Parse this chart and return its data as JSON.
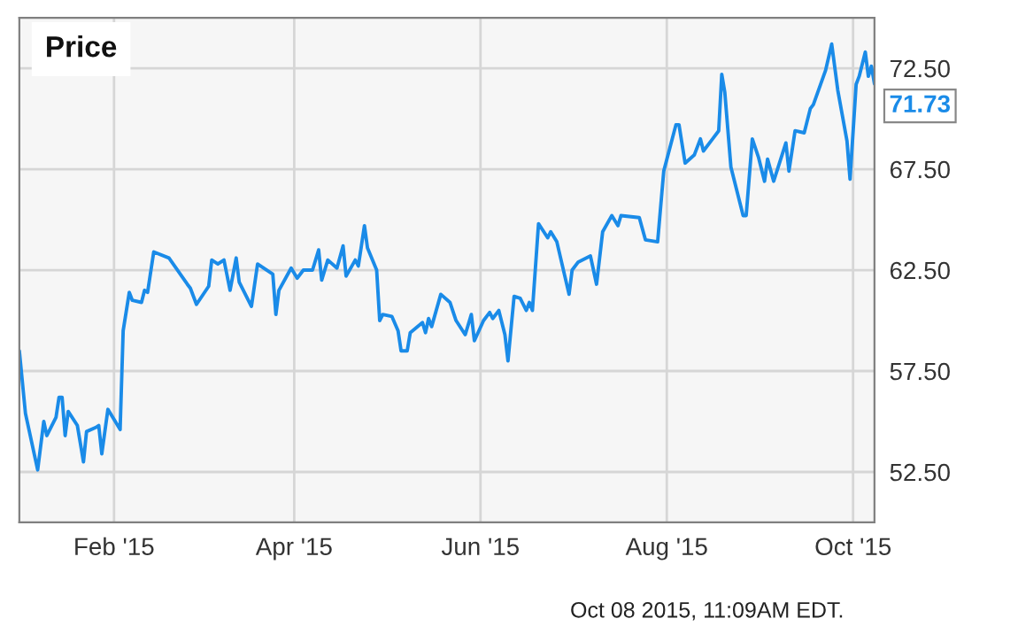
{
  "chart_data": {
    "type": "line",
    "title": "Price",
    "x": [
      "2015-01-01",
      "2015-01-03",
      "2015-01-07",
      "2015-01-09",
      "2015-01-10",
      "2015-01-13",
      "2015-01-14",
      "2015-01-15",
      "2015-01-16",
      "2015-01-17",
      "2015-01-20",
      "2015-01-22",
      "2015-01-23",
      "2015-01-26",
      "2015-01-27",
      "2015-01-28",
      "2015-01-30",
      "2015-02-03",
      "2015-02-04",
      "2015-02-06",
      "2015-02-07",
      "2015-02-10",
      "2015-02-11",
      "2015-02-12",
      "2015-02-14",
      "2015-02-19",
      "2015-02-25",
      "2015-02-26",
      "2015-02-28",
      "2015-03-04",
      "2015-03-05",
      "2015-03-07",
      "2015-03-09",
      "2015-03-11",
      "2015-03-13",
      "2015-03-14",
      "2015-03-18",
      "2015-03-20",
      "2015-03-25",
      "2015-03-26",
      "2015-03-27",
      "2015-03-31",
      "2015-04-02",
      "2015-04-04",
      "2015-04-07",
      "2015-04-09",
      "2015-04-10",
      "2015-04-12",
      "2015-04-15",
      "2015-04-17",
      "2015-04-18",
      "2015-04-21",
      "2015-04-22",
      "2015-04-24",
      "2015-04-25",
      "2015-04-28",
      "2015-04-29",
      "2015-04-30",
      "2015-05-03",
      "2015-05-05",
      "2015-05-06",
      "2015-05-08",
      "2015-05-09",
      "2015-05-13",
      "2015-05-14",
      "2015-05-15",
      "2015-05-16",
      "2015-05-19",
      "2015-05-22",
      "2015-05-24",
      "2015-05-27",
      "2015-05-29",
      "2015-05-30",
      "2015-06-02",
      "2015-06-04",
      "2015-06-05",
      "2015-06-07",
      "2015-06-09",
      "2015-06-10",
      "2015-06-12",
      "2015-06-14",
      "2015-06-16",
      "2015-06-17",
      "2015-06-18",
      "2015-06-20",
      "2015-06-23",
      "2015-06-24",
      "2015-06-26",
      "2015-06-30",
      "2015-07-01",
      "2015-07-03",
      "2015-07-07",
      "2015-07-09",
      "2015-07-11",
      "2015-07-14",
      "2015-07-16",
      "2015-07-17",
      "2015-07-23",
      "2015-07-25",
      "2015-07-29",
      "2015-07-31",
      "2015-08-04",
      "2015-08-05",
      "2015-08-07",
      "2015-08-10",
      "2015-08-12",
      "2015-08-13",
      "2015-08-16",
      "2015-08-18",
      "2015-08-19",
      "2015-08-20",
      "2015-08-22",
      "2015-08-26",
      "2015-08-27",
      "2015-08-29",
      "2015-08-31",
      "2015-09-02",
      "2015-09-03",
      "2015-09-05",
      "2015-09-09",
      "2015-09-10",
      "2015-09-12",
      "2015-09-15",
      "2015-09-17",
      "2015-09-18",
      "2015-09-22",
      "2015-09-24",
      "2015-09-26",
      "2015-09-29",
      "2015-09-30",
      "2015-10-02",
      "2015-10-03",
      "2015-10-05",
      "2015-10-06",
      "2015-10-07",
      "2015-10-08"
    ],
    "series": [
      {
        "color": "#1a8be8",
        "values": [
          58.5,
          55.4,
          52.6,
          55.0,
          54.3,
          55.2,
          56.2,
          56.2,
          54.3,
          55.5,
          54.8,
          53.0,
          54.5,
          54.7,
          54.8,
          53.4,
          55.6,
          54.6,
          59.5,
          61.4,
          61.0,
          60.9,
          61.5,
          61.4,
          63.4,
          63.1,
          61.8,
          61.6,
          60.8,
          61.7,
          63.0,
          62.8,
          63.0,
          61.5,
          63.1,
          61.9,
          60.7,
          62.8,
          62.3,
          60.3,
          61.5,
          62.6,
          62.1,
          62.5,
          62.5,
          63.5,
          62.0,
          63.0,
          62.6,
          63.7,
          62.2,
          63.0,
          62.7,
          64.7,
          63.6,
          62.5,
          60.0,
          60.3,
          60.2,
          59.5,
          58.5,
          58.5,
          59.4,
          59.9,
          59.4,
          60.1,
          59.7,
          61.3,
          60.9,
          60.0,
          59.3,
          60.3,
          59.0,
          60.0,
          60.4,
          60.1,
          60.5,
          59.3,
          58.0,
          61.2,
          61.1,
          60.5,
          60.9,
          60.5,
          64.8,
          64.1,
          64.4,
          63.9,
          61.3,
          62.5,
          62.9,
          63.2,
          61.8,
          64.4,
          65.2,
          64.7,
          65.2,
          65.1,
          64.0,
          63.9,
          67.4,
          69.7,
          69.7,
          67.8,
          68.2,
          69.0,
          68.4,
          69.0,
          69.4,
          72.2,
          71.3,
          67.6,
          65.2,
          65.2,
          69.0,
          68.1,
          66.9,
          68.0,
          66.9,
          68.8,
          67.4,
          69.4,
          69.3,
          70.5,
          70.7,
          72.4,
          73.7,
          71.4,
          68.9,
          67.0,
          71.7,
          72.1,
          73.3,
          72.1,
          72.6,
          71.73
        ]
      }
    ],
    "xlim": [
      "2015-01-01",
      "2015-10-08"
    ],
    "xticks": [
      {
        "value": "2015-02-01",
        "label": "Feb '15"
      },
      {
        "value": "2015-04-01",
        "label": "Apr '15"
      },
      {
        "value": "2015-06-01",
        "label": "Jun '15"
      },
      {
        "value": "2015-08-01",
        "label": "Aug '15"
      },
      {
        "value": "2015-10-01",
        "label": "Oct '15"
      }
    ],
    "ylim": [
      50,
      75
    ],
    "yticks": [
      {
        "value": 52.5,
        "label": "52.50"
      },
      {
        "value": 57.5,
        "label": "57.50"
      },
      {
        "value": 62.5,
        "label": "62.50"
      },
      {
        "value": 67.5,
        "label": "67.50"
      },
      {
        "value": 72.5,
        "label": "72.50"
      }
    ],
    "grid": true,
    "line_style": "solid",
    "marker": "none",
    "annotations": [
      {
        "text": "71.73",
        "x": "2015-10-08",
        "y": 71.73
      },
      "Oct 08 2015, 11:09AM EDT."
    ]
  }
}
